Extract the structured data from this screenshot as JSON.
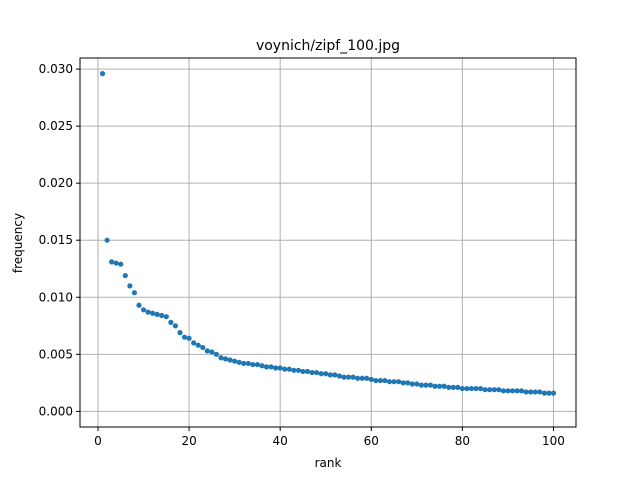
{
  "chart_data": {
    "type": "scatter",
    "title": "voynich/zipf_100.jpg",
    "xlabel": "rank",
    "ylabel": "frequency",
    "xlim": [
      -3.95,
      104.95
    ],
    "ylim": [
      -0.00137,
      0.03097
    ],
    "xticks": [
      0,
      20,
      40,
      60,
      80,
      100
    ],
    "xtick_labels": [
      "0",
      "20",
      "40",
      "60",
      "80",
      "100"
    ],
    "yticks": [
      0.0,
      0.005,
      0.01,
      0.015,
      0.02,
      0.025,
      0.03
    ],
    "ytick_labels": [
      "0.000",
      "0.005",
      "0.010",
      "0.015",
      "0.020",
      "0.025",
      "0.030"
    ],
    "grid": true,
    "marker_color": "#1f77b4",
    "x": [
      1,
      2,
      3,
      4,
      5,
      6,
      7,
      8,
      9,
      10,
      11,
      12,
      13,
      14,
      15,
      16,
      17,
      18,
      19,
      20,
      21,
      22,
      23,
      24,
      25,
      26,
      27,
      28,
      29,
      30,
      31,
      32,
      33,
      34,
      35,
      36,
      37,
      38,
      39,
      40,
      41,
      42,
      43,
      44,
      45,
      46,
      47,
      48,
      49,
      50,
      51,
      52,
      53,
      54,
      55,
      56,
      57,
      58,
      59,
      60,
      61,
      62,
      63,
      64,
      65,
      66,
      67,
      68,
      69,
      70,
      71,
      72,
      73,
      74,
      75,
      76,
      77,
      78,
      79,
      80,
      81,
      82,
      83,
      84,
      85,
      86,
      87,
      88,
      89,
      90,
      91,
      92,
      93,
      94,
      95,
      96,
      97,
      98,
      99,
      100
    ],
    "y": [
      0.0296,
      0.015,
      0.0131,
      0.013,
      0.0129,
      0.0119,
      0.011,
      0.0104,
      0.0093,
      0.0089,
      0.0087,
      0.0086,
      0.0085,
      0.0084,
      0.0083,
      0.0078,
      0.0075,
      0.0069,
      0.0065,
      0.0064,
      0.006,
      0.0058,
      0.0056,
      0.0053,
      0.0052,
      0.005,
      0.0047,
      0.0046,
      0.0045,
      0.0044,
      0.0043,
      0.0042,
      0.0042,
      0.0041,
      0.0041,
      0.004,
      0.0039,
      0.0039,
      0.0038,
      0.0038,
      0.0037,
      0.0037,
      0.0036,
      0.0036,
      0.0035,
      0.0035,
      0.0034,
      0.0034,
      0.0033,
      0.0033,
      0.0032,
      0.0032,
      0.0031,
      0.003,
      0.003,
      0.003,
      0.0029,
      0.0029,
      0.0029,
      0.0028,
      0.0027,
      0.0027,
      0.0027,
      0.0026,
      0.0026,
      0.0026,
      0.0025,
      0.0025,
      0.0024,
      0.0024,
      0.0023,
      0.0023,
      0.0023,
      0.0022,
      0.0022,
      0.0022,
      0.0021,
      0.0021,
      0.0021,
      0.002,
      0.002,
      0.002,
      0.002,
      0.002,
      0.0019,
      0.0019,
      0.0019,
      0.0019,
      0.0018,
      0.0018,
      0.0018,
      0.0018,
      0.0018,
      0.0017,
      0.0017,
      0.0017,
      0.0017,
      0.0016,
      0.0016,
      0.0016
    ]
  }
}
